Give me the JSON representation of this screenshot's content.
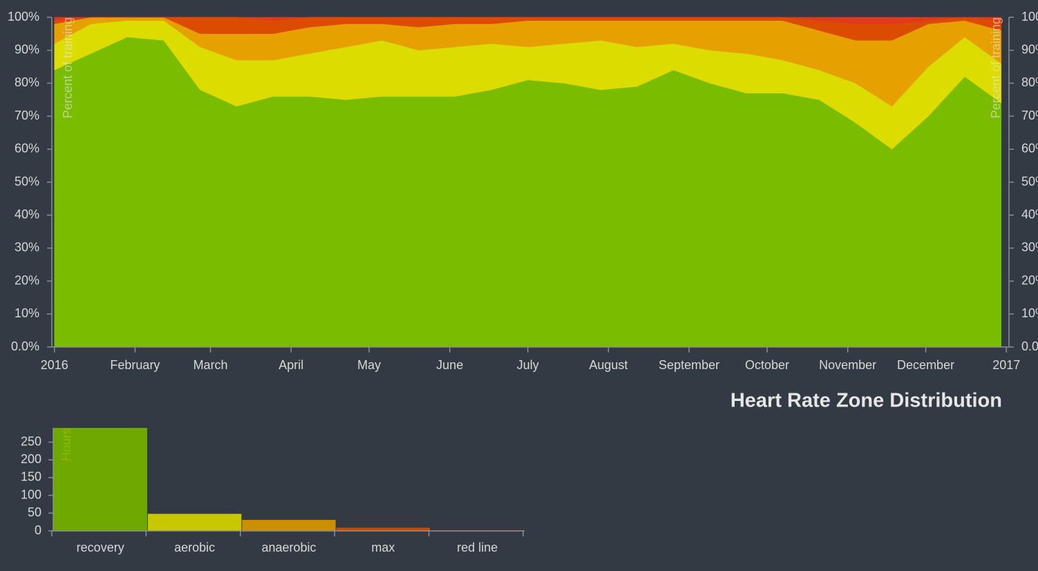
{
  "chart_data": [
    {
      "type": "area",
      "stacked": true,
      "y_label": "Percent of training",
      "x": [
        0,
        14,
        28,
        42,
        56,
        70,
        84,
        98,
        112,
        126,
        140,
        154,
        168,
        182,
        196,
        210,
        224,
        238,
        252,
        266,
        280,
        294,
        308,
        322,
        336,
        350,
        364
      ],
      "xlim": [
        -1,
        367
      ],
      "xticks": [
        {
          "value": 0,
          "label": "2016"
        },
        {
          "value": 31,
          "label": "February"
        },
        {
          "value": 60,
          "label": "March"
        },
        {
          "value": 91,
          "label": "April"
        },
        {
          "value": 121,
          "label": "May"
        },
        {
          "value": 152,
          "label": "June"
        },
        {
          "value": 182,
          "label": "July"
        },
        {
          "value": 213,
          "label": "August"
        },
        {
          "value": 244,
          "label": "September"
        },
        {
          "value": 274,
          "label": "October"
        },
        {
          "value": 305,
          "label": "November"
        },
        {
          "value": 335,
          "label": "December"
        },
        {
          "value": 366,
          "label": "2017"
        }
      ],
      "ylim": [
        0,
        100
      ],
      "yticks": [
        {
          "value": 0,
          "label": "0.0%"
        },
        {
          "value": 10,
          "label": "10%"
        },
        {
          "value": 20,
          "label": "20%"
        },
        {
          "value": 30,
          "label": "30%"
        },
        {
          "value": 40,
          "label": "40%"
        },
        {
          "value": 50,
          "label": "50%"
        },
        {
          "value": 60,
          "label": "60%"
        },
        {
          "value": 70,
          "label": "70%"
        },
        {
          "value": 80,
          "label": "80%"
        },
        {
          "value": 90,
          "label": "90%"
        },
        {
          "value": 100,
          "label": "100%"
        }
      ],
      "y2lim": [
        0,
        100
      ],
      "y2ticks": [
        {
          "value": 0,
          "label": "0.0%"
        },
        {
          "value": 10,
          "label": "10%"
        },
        {
          "value": 20,
          "label": "20%"
        },
        {
          "value": 30,
          "label": "30%"
        },
        {
          "value": 40,
          "label": "40%"
        },
        {
          "value": 50,
          "label": "50%"
        },
        {
          "value": 60,
          "label": "60%"
        },
        {
          "value": 70,
          "label": "70%"
        },
        {
          "value": 80,
          "label": "80%"
        },
        {
          "value": 90,
          "label": "90%"
        },
        {
          "value": 100,
          "label": "100%"
        }
      ],
      "y2_label": "Percent of training",
      "series": [
        {
          "name": "recovery",
          "color": "#7abd00",
          "values": [
            84,
            89,
            94,
            93,
            78,
            73,
            76,
            76,
            75,
            76,
            76,
            76,
            78,
            81,
            80,
            78,
            79,
            84,
            80,
            77,
            77,
            75,
            68,
            60,
            70,
            82,
            74
          ]
        },
        {
          "name": "aerobic",
          "color": "#dcdc00",
          "values": [
            8,
            9,
            5,
            6,
            13,
            14,
            11,
            13,
            16,
            17,
            14,
            15,
            14,
            10,
            12,
            15,
            12,
            8,
            10,
            12,
            10,
            9,
            12,
            13,
            15,
            12,
            12
          ]
        },
        {
          "name": "anaerobic",
          "color": "#e6a100",
          "values": [
            6,
            2,
            1,
            1,
            4,
            8,
            8,
            8,
            7,
            5,
            7,
            7,
            6,
            8,
            7,
            6,
            8,
            7,
            9,
            10,
            12,
            12,
            13,
            20,
            13,
            5,
            10
          ]
        },
        {
          "name": "max",
          "color": "#dc4c00",
          "values": [
            1,
            0,
            0,
            0,
            5,
            5,
            4,
            3,
            2,
            2,
            3,
            2,
            2,
            1,
            1,
            1,
            1,
            1,
            1,
            1,
            1,
            3,
            5,
            5,
            1,
            1,
            3
          ]
        },
        {
          "name": "red line",
          "color": "#e03a1e",
          "values": [
            1,
            0,
            0,
            0,
            0,
            0,
            1,
            0,
            0,
            0,
            0,
            0,
            0,
            0,
            0,
            0,
            0,
            0,
            0,
            0,
            0,
            1,
            2,
            2,
            1,
            0,
            1
          ]
        }
      ]
    },
    {
      "type": "bar",
      "title": "Heart Rate Zone Distribution",
      "y_label": "Hours",
      "categories": [
        "recovery",
        "aerobic",
        "anaerobic",
        "max",
        "red line"
      ],
      "values": [
        290,
        48,
        31,
        9,
        2
      ],
      "colors": [
        "#6fa800",
        "#c8c800",
        "#cc8f00",
        "#cc4a00",
        "#c01818"
      ],
      "ylim": [
        0,
        290
      ],
      "yticks": [
        0,
        50,
        100,
        150,
        200,
        250
      ]
    }
  ]
}
